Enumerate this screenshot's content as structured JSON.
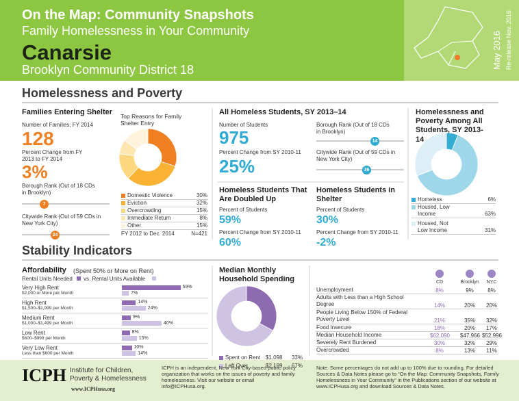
{
  "header": {
    "title": "On the Map: Community Snapshots",
    "subtitle": "Family Homelessness in Your Community",
    "community": "Canarsie",
    "district": "Brooklyn Community District 18",
    "date": "May 2016",
    "rerelease": "Re-release Nov. 2016"
  },
  "section1": "Homelessness and Poverty",
  "families": {
    "heading": "Families Entering Shelter",
    "number_label": "Number of Families, FY 2014",
    "number": 128,
    "change_label": "Percent Change from FY 2013 to FY 2014",
    "change": "3%",
    "borough_rank_label": "Borough Rank (Out of 18 CDs in Brooklyn)",
    "borough_rank": 7,
    "citywide_rank_label": "Citywide Rank (Out of 59 CDs in New York City)",
    "citywide_rank": 24
  },
  "reasons": {
    "heading": "Top Reasons for Family Shelter Entry",
    "labels": [
      "Domestic Violence",
      "Eviction",
      "Overcrowding",
      "Immediate Return",
      "Other"
    ],
    "values": [
      30,
      32,
      15,
      8,
      15
    ],
    "value_labels": [
      "30%",
      "32%",
      "15%",
      "8%",
      "15%"
    ],
    "colors": [
      "#ee7f22",
      "#f9b233",
      "#fcd77f",
      "#fde6b0",
      "#fef3dc"
    ],
    "period": "FY 2012 to Dec. 2014",
    "n": "N=421"
  },
  "students": {
    "heading": "All Homeless Students, SY 2013–14",
    "number_label": "Number of Students",
    "number": 975,
    "change_label": "Percent Change from SY 2010-11",
    "change": "25%",
    "borough_rank_label": "Borough Rank (Out of 18 CDs in Brooklyn)",
    "borough_rank": 14,
    "citywide_rank_label": "Citywide Rank (Out of 59 CDs in New York City)",
    "citywide_rank": 36
  },
  "doubled_up": {
    "heading": "Homeless Students That Are Doubled Up",
    "pct_label": "Percent of Students",
    "pct": "59%",
    "change_label": "Percent Change from SY 2010-11",
    "change": "60%"
  },
  "in_shelter": {
    "heading": "Homeless Students in Shelter",
    "pct_label": "Percent of Students",
    "pct": "30%",
    "change_label": "Percent Change from SY 2010-11",
    "change": "-2%"
  },
  "poverty": {
    "heading": "Homelessness and Poverty Among All Students, SY 2013-14",
    "labels": [
      "Homeless",
      "Housed, Low Income",
      "Housed, Not Low Income"
    ],
    "values": [
      6,
      63,
      31
    ],
    "value_labels": [
      "6%",
      "63%",
      "31%"
    ],
    "colors": [
      "#35acd4",
      "#9fd7ea",
      "#dceff6"
    ]
  },
  "section2": "Stability Indicators",
  "affordability": {
    "heading": "Affordability",
    "subheading": "(Spent 50% or More on Rent)",
    "legend_needed": "Rental Units Needed",
    "legend_available": "vs. Rental Units Available",
    "colors": [
      "#8e6bb1",
      "#cfc3e3"
    ],
    "rows": [
      {
        "label": "Very High Rent",
        "sublabel": "$2,000 or More per Month",
        "needed": 59,
        "needed_label": "59%",
        "available": 7,
        "available_label": "7%"
      },
      {
        "label": "High Rent",
        "sublabel": "$1,500–$1,999 per Month",
        "needed": 14,
        "needed_label": "14%",
        "available": 24,
        "available_label": "24%"
      },
      {
        "label": "Medium Rent",
        "sublabel": "$1,000–$1,499 per Month",
        "needed": 9,
        "needed_label": "9%",
        "available": 40,
        "available_label": "40%"
      },
      {
        "label": "Low Rent",
        "sublabel": "$600–$999 per Month",
        "needed": 8,
        "needed_label": "8%",
        "available": 15,
        "available_label": "15%"
      },
      {
        "label": "Very Low Rent",
        "sublabel": "Less than $600 per Month",
        "needed": 10,
        "needed_label": "10%",
        "available": 14,
        "available_label": "14%"
      }
    ]
  },
  "spending": {
    "heading": "Median Monthly Household Spending",
    "labels": [
      "Spent on Rent",
      "Left Over"
    ],
    "amounts": [
      "$1,098",
      "$2,199"
    ],
    "values": [
      33,
      67
    ],
    "value_labels": [
      "33%",
      "67%"
    ],
    "colors": [
      "#8e6bb1",
      "#cfc3e3"
    ]
  },
  "indicators": {
    "columns": [
      "CD",
      "Brooklyn",
      "NYC"
    ],
    "rows": [
      [
        "Unemployment",
        "8%",
        "9%",
        "8%"
      ],
      [
        "Adults with Less than a High School Degree",
        "14%",
        "20%",
        "20%"
      ],
      [
        "People Living Below 150% of Federal Poverty Level",
        "21%",
        "35%",
        "32%"
      ],
      [
        "Food Insecure",
        "18%",
        "20%",
        "17%"
      ],
      [
        "Median Household Income",
        "$62,090",
        "$47,966",
        "$52,996"
      ],
      [
        "Severely Rent Burdened",
        "30%",
        "32%",
        "29%"
      ],
      [
        "Overcrowded",
        "8%",
        "13%",
        "11%"
      ]
    ]
  },
  "footer": {
    "logo": "ICPH",
    "org": "Institute for Children, Poverty & Homelessness",
    "url": "www.ICPHusa.org",
    "about": "ICPH is an independent, New York City-based public policy organization that works on the issues of poverty and family homelessness. Visit our website or email info@ICPHusa.org.",
    "note": "Note: Some percentages do not add up to 100% due to rounding. For detailed Sources & Data Notes please go to “On the Map: Community Snapshots, Family Homelessness in Your Community” in the Publications section of our website at www.ICPHusa.org and download Sources & Data Notes."
  }
}
